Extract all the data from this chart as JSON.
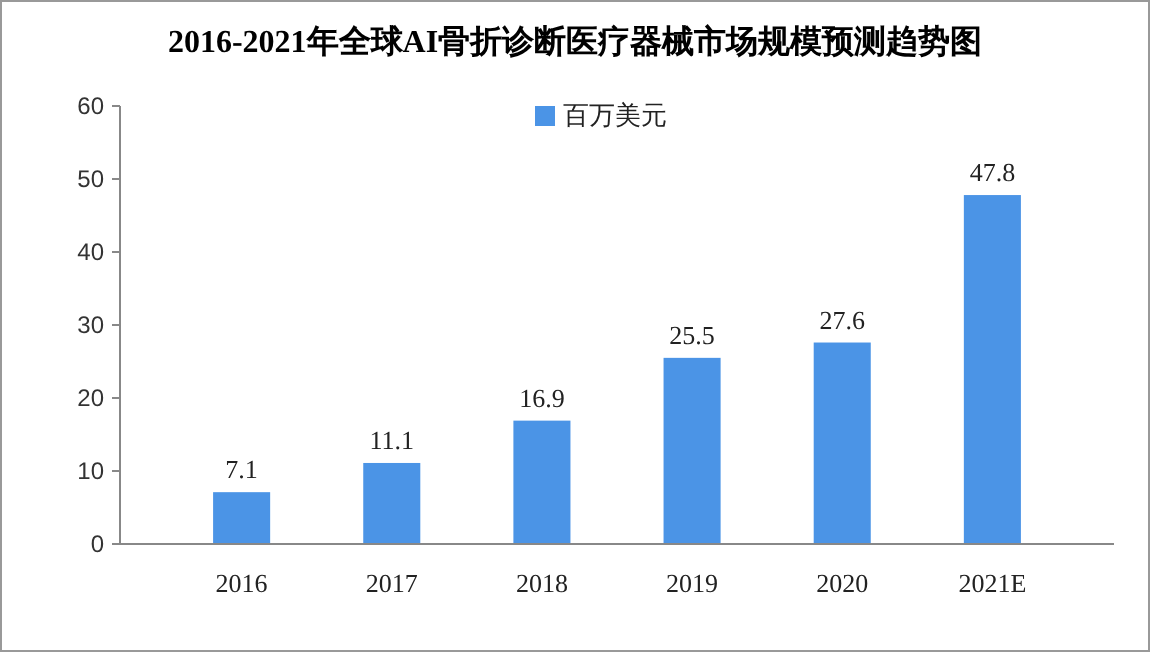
{
  "chart_data": {
    "type": "bar",
    "title": "2016-2021年全球AI骨折诊断医疗器械市场规模预测趋势图",
    "categories": [
      "2016",
      "2017",
      "2018",
      "2019",
      "2020",
      "2021E"
    ],
    "series": [
      {
        "name": "百万美元",
        "color": "#4b94e6",
        "values": [
          7.1,
          11.1,
          16.9,
          25.5,
          27.6,
          47.8
        ]
      }
    ],
    "ylim": [
      0,
      60
    ],
    "yticks": [
      0,
      10,
      20,
      30,
      40,
      50,
      60
    ],
    "grid": false,
    "legend": "top",
    "data_labels": true
  }
}
